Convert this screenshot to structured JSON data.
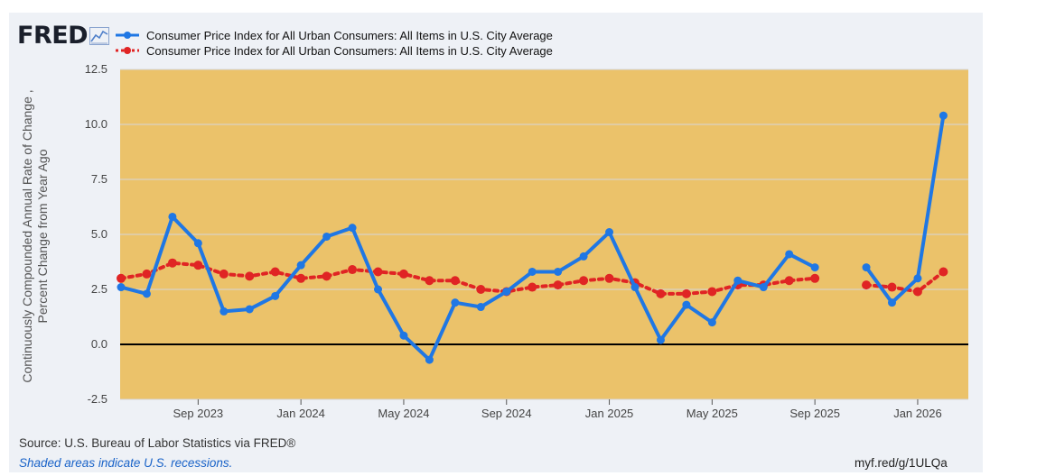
{
  "header": {
    "logo_text": "FRED",
    "logo_icon": "line-chart-icon"
  },
  "legend": [
    {
      "label": "Consumer Price Index for All Urban Consumers: All Items in U.S. City Average",
      "color": "#1f77e4",
      "style": "solid"
    },
    {
      "label": "Consumer Price Index for All Urban Consumers: All Items in U.S. City Average",
      "color": "#e02424",
      "style": "dotted"
    }
  ],
  "footer": {
    "source": "Source: U.S. Bureau of Labor Statistics via FRED®",
    "recession_note": "Shaded areas indicate U.S. recessions.",
    "short_url": "myf.red/g/1ULQa"
  },
  "colors": {
    "plot_background": "#ebc26a",
    "blue_series": "#1f77e4",
    "red_series": "#e02424",
    "zero_line": "#000000"
  },
  "chart_data": {
    "type": "line",
    "title": "",
    "ylabel": "Continuously Compounded Annual Rate of Change , Percent Change from Year Ago",
    "xlabel": "",
    "ylim": [
      -2.5,
      12.5
    ],
    "yticks": [
      -2.5,
      0.0,
      2.5,
      5.0,
      7.5,
      10.0,
      12.5
    ],
    "ytick_labels": [
      "-2.5",
      "0.0",
      "2.5",
      "5.0",
      "7.5",
      "10.0",
      "12.5"
    ],
    "x_months": [
      "2023-06",
      "2023-07",
      "2023-08",
      "2023-09",
      "2023-10",
      "2023-11",
      "2023-12",
      "2024-01",
      "2024-02",
      "2024-03",
      "2024-04",
      "2024-05",
      "2024-06",
      "2024-07",
      "2024-08",
      "2024-09",
      "2024-10",
      "2024-11",
      "2024-12",
      "2025-01",
      "2025-02",
      "2025-03",
      "2025-04",
      "2025-05",
      "2025-06",
      "2025-07",
      "2025-08",
      "2025-09",
      "2025-10",
      "2025-11",
      "2025-12",
      "2026-01",
      "2026-02"
    ],
    "xticks": [
      {
        "month_index": 3,
        "label": "Sep 2023"
      },
      {
        "month_index": 7,
        "label": "Jan 2024"
      },
      {
        "month_index": 11,
        "label": "May 2024"
      },
      {
        "month_index": 15,
        "label": "Sep 2024"
      },
      {
        "month_index": 19,
        "label": "Jan 2025"
      },
      {
        "month_index": 23,
        "label": "May 2025"
      },
      {
        "month_index": 27,
        "label": "Sep 2025"
      },
      {
        "month_index": 31,
        "label": "Jan 2026"
      }
    ],
    "reference_line": 0.0,
    "series": [
      {
        "name": "Consumer Price Index for All Urban Consumers: All Items in U.S. City Average",
        "style": "solid",
        "color": "#1f77e4",
        "values": [
          2.6,
          2.3,
          5.8,
          4.6,
          1.5,
          1.6,
          2.2,
          3.6,
          4.9,
          5.3,
          2.5,
          0.4,
          -0.7,
          1.9,
          1.7,
          2.4,
          3.3,
          3.3,
          4.0,
          5.1,
          2.6,
          0.2,
          1.8,
          1.0,
          2.9,
          2.6,
          4.1,
          3.5,
          null,
          3.5,
          1.9,
          3.0,
          10.4
        ]
      },
      {
        "name": "Consumer Price Index for All Urban Consumers: All Items in U.S. City Average",
        "style": "dotted",
        "color": "#e02424",
        "values": [
          3.0,
          3.2,
          3.7,
          3.6,
          3.2,
          3.1,
          3.3,
          3.0,
          3.1,
          3.4,
          3.3,
          3.2,
          2.9,
          2.9,
          2.5,
          2.4,
          2.6,
          2.7,
          2.9,
          3.0,
          2.8,
          2.3,
          2.3,
          2.4,
          2.7,
          2.7,
          2.9,
          3.0,
          null,
          2.7,
          2.6,
          2.4,
          3.3
        ]
      }
    ]
  }
}
